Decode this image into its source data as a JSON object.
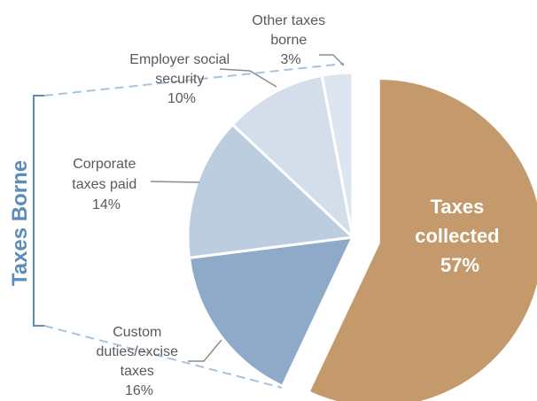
{
  "chart_data": {
    "type": "pie",
    "title": "",
    "slices": [
      {
        "label": "Taxes collected",
        "value": 57,
        "value_label": "57%",
        "color": "#c49a6c",
        "exploded": true
      },
      {
        "label": "Custom duties/excise taxes",
        "value": 16,
        "value_label": "16%",
        "color": "#8eaac8"
      },
      {
        "label": "Corporate taxes paid",
        "value": 14,
        "value_label": "14%",
        "color": "#bccde0"
      },
      {
        "label": "Employer social security",
        "value": 10,
        "value_label": "10%",
        "color": "#d3deea"
      },
      {
        "label": "Other taxes borne",
        "value": 3,
        "value_label": "3%",
        "color": "#dde6f0"
      }
    ],
    "group_bracket": {
      "label": "Taxes Borne",
      "color": "#5b8db8"
    }
  },
  "labels": {
    "taxes_collected": [
      "Taxes",
      "collected",
      "57%"
    ],
    "custom_duties": [
      "Custom",
      "duties/excise",
      "taxes",
      "16%"
    ],
    "corporate": [
      "Corporate",
      "taxes paid",
      "14%"
    ],
    "employer": [
      "Employer social",
      "security",
      "10%"
    ],
    "other": [
      "Other taxes",
      "borne",
      "3%"
    ]
  }
}
